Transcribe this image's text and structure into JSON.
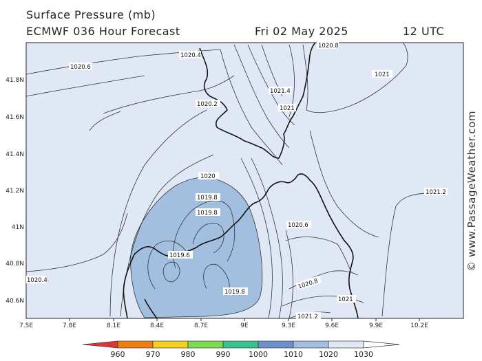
{
  "header": {
    "title": "Surface Pressure (mb)",
    "subtitle": "ECMWF 036 Hour Forecast",
    "date": "Fri 02 May 2025",
    "time": "12 UTC"
  },
  "watermark": "© www.PassageWeather.com",
  "map": {
    "x_ticks": [
      "7.5E",
      "7.8E",
      "8.1E",
      "8.4E",
      "8.7E",
      "9E",
      "9.3E",
      "9.6E",
      "9.9E",
      "10.2E"
    ],
    "y_ticks": [
      "41.8N",
      "41.6N",
      "41.4N",
      "41.2N",
      "41N",
      "40.8N",
      "40.6N"
    ],
    "isobar_labels": [
      "1020.4",
      "1020.8",
      "1020.6",
      "1021.4",
      "1021",
      "1021",
      "1020.2",
      "1020",
      "1019.8",
      "1019.8",
      "1019.6",
      "1019.8",
      "1021.2",
      "1020.4",
      "1020.6",
      "1020.8",
      "1021",
      "1021.2"
    ],
    "fill_colors": {
      "below_1020": "#a3bfe0",
      "1020_1030": "#e1e8f5"
    }
  },
  "colorbar": {
    "labels": [
      "960",
      "970",
      "980",
      "990",
      "1000",
      "1010",
      "1020",
      "1030"
    ],
    "colors": [
      "#e03535",
      "#f07f10",
      "#f4d21a",
      "#7fdc50",
      "#36c490",
      "#6c8fce",
      "#a3bfe0",
      "#e1e8f5"
    ]
  }
}
